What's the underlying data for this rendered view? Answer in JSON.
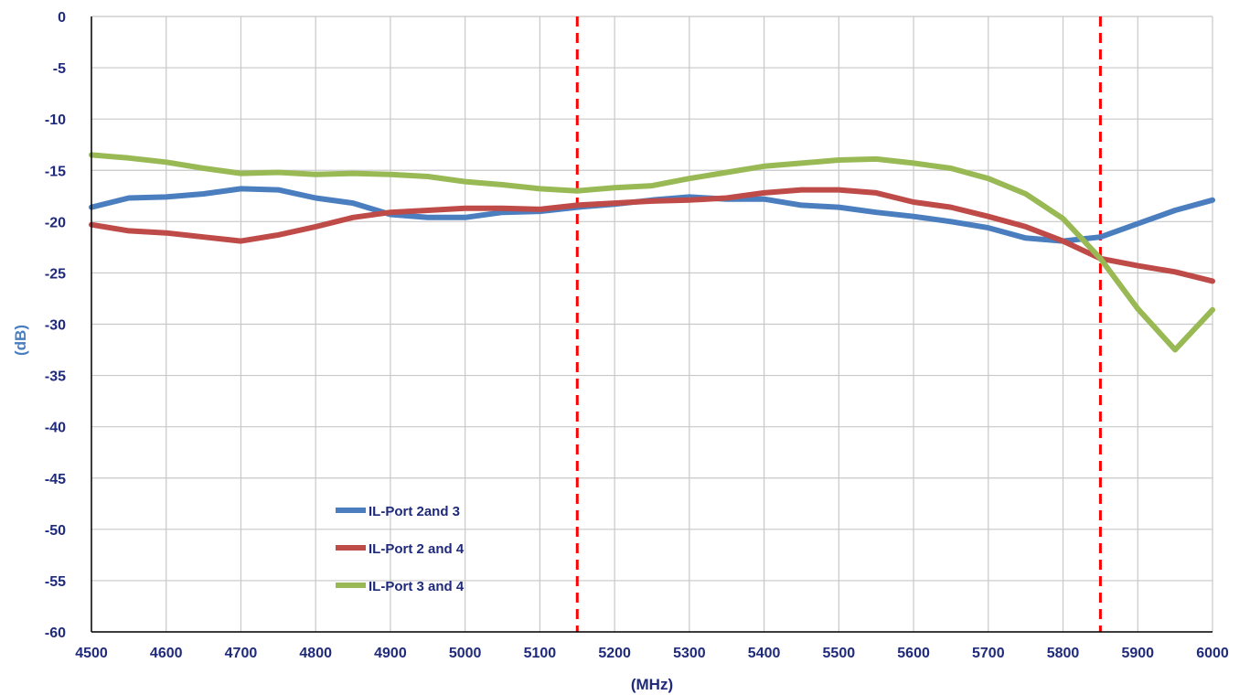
{
  "chart_data": {
    "type": "line",
    "title": "",
    "xlabel": "(MHz)",
    "ylabel": "(dB)",
    "xlim": [
      4500,
      6000
    ],
    "ylim": [
      -60,
      0
    ],
    "x_ticks": [
      "4500",
      "4600",
      "4700",
      "4800",
      "4900",
      "5000",
      "5100",
      "5200",
      "5300",
      "5400",
      "5500",
      "5600",
      "5700",
      "5800",
      "5900",
      "6000"
    ],
    "y_ticks": [
      "0",
      "-5",
      "-10",
      "-15",
      "-20",
      "-25",
      "-30",
      "-35",
      "-40",
      "-45",
      "-50",
      "-55",
      "-60"
    ],
    "grid": true,
    "legend_position": "bottom-left",
    "markers": [
      {
        "x": 5150,
        "color": "#ff0000",
        "style": "dashed"
      },
      {
        "x": 5850,
        "color": "#ff0000",
        "style": "dashed"
      }
    ],
    "series": [
      {
        "name": "IL-Port 2and 3",
        "color": "#4a7ebf",
        "points": [
          [
            4500,
            -18.6
          ],
          [
            4550,
            -17.7
          ],
          [
            4600,
            -17.6
          ],
          [
            4650,
            -17.3
          ],
          [
            4700,
            -16.8
          ],
          [
            4750,
            -16.9
          ],
          [
            4800,
            -17.7
          ],
          [
            4850,
            -18.2
          ],
          [
            4900,
            -19.3
          ],
          [
            4950,
            -19.6
          ],
          [
            5000,
            -19.6
          ],
          [
            5050,
            -19.1
          ],
          [
            5100,
            -19.0
          ],
          [
            5150,
            -18.6
          ],
          [
            5200,
            -18.3
          ],
          [
            5250,
            -17.9
          ],
          [
            5300,
            -17.6
          ],
          [
            5350,
            -17.8
          ],
          [
            5400,
            -17.8
          ],
          [
            5450,
            -18.4
          ],
          [
            5500,
            -18.6
          ],
          [
            5550,
            -19.1
          ],
          [
            5600,
            -19.5
          ],
          [
            5650,
            -20.0
          ],
          [
            5700,
            -20.6
          ],
          [
            5750,
            -21.6
          ],
          [
            5800,
            -21.9
          ],
          [
            5850,
            -21.5
          ],
          [
            5900,
            -20.2
          ],
          [
            5950,
            -18.9
          ],
          [
            6000,
            -17.9
          ]
        ]
      },
      {
        "name": "IL-Port 2 and 4",
        "color": "#be4b48",
        "points": [
          [
            4500,
            -20.3
          ],
          [
            4550,
            -20.9
          ],
          [
            4600,
            -21.1
          ],
          [
            4650,
            -21.5
          ],
          [
            4700,
            -21.9
          ],
          [
            4750,
            -21.3
          ],
          [
            4800,
            -20.5
          ],
          [
            4850,
            -19.6
          ],
          [
            4900,
            -19.1
          ],
          [
            4950,
            -18.9
          ],
          [
            5000,
            -18.7
          ],
          [
            5050,
            -18.7
          ],
          [
            5100,
            -18.8
          ],
          [
            5150,
            -18.4
          ],
          [
            5200,
            -18.2
          ],
          [
            5250,
            -18.0
          ],
          [
            5300,
            -17.9
          ],
          [
            5350,
            -17.7
          ],
          [
            5400,
            -17.2
          ],
          [
            5450,
            -16.9
          ],
          [
            5500,
            -16.9
          ],
          [
            5550,
            -17.2
          ],
          [
            5600,
            -18.1
          ],
          [
            5650,
            -18.6
          ],
          [
            5700,
            -19.5
          ],
          [
            5750,
            -20.5
          ],
          [
            5800,
            -21.9
          ],
          [
            5850,
            -23.6
          ],
          [
            5900,
            -24.3
          ],
          [
            5950,
            -24.9
          ],
          [
            6000,
            -25.8
          ]
        ]
      },
      {
        "name": "IL-Port 3 and 4",
        "color": "#98b954",
        "points": [
          [
            4500,
            -13.5
          ],
          [
            4550,
            -13.8
          ],
          [
            4600,
            -14.2
          ],
          [
            4650,
            -14.8
          ],
          [
            4700,
            -15.3
          ],
          [
            4750,
            -15.2
          ],
          [
            4800,
            -15.4
          ],
          [
            4850,
            -15.3
          ],
          [
            4900,
            -15.4
          ],
          [
            4950,
            -15.6
          ],
          [
            5000,
            -16.1
          ],
          [
            5050,
            -16.4
          ],
          [
            5100,
            -16.8
          ],
          [
            5150,
            -17.0
          ],
          [
            5200,
            -16.7
          ],
          [
            5250,
            -16.5
          ],
          [
            5300,
            -15.8
          ],
          [
            5350,
            -15.2
          ],
          [
            5400,
            -14.6
          ],
          [
            5450,
            -14.3
          ],
          [
            5500,
            -14.0
          ],
          [
            5550,
            -13.9
          ],
          [
            5600,
            -14.3
          ],
          [
            5650,
            -14.8
          ],
          [
            5700,
            -15.8
          ],
          [
            5750,
            -17.3
          ],
          [
            5800,
            -19.7
          ],
          [
            5850,
            -23.6
          ],
          [
            5900,
            -28.5
          ],
          [
            5950,
            -32.5
          ],
          [
            6000,
            -28.6
          ]
        ]
      }
    ]
  }
}
